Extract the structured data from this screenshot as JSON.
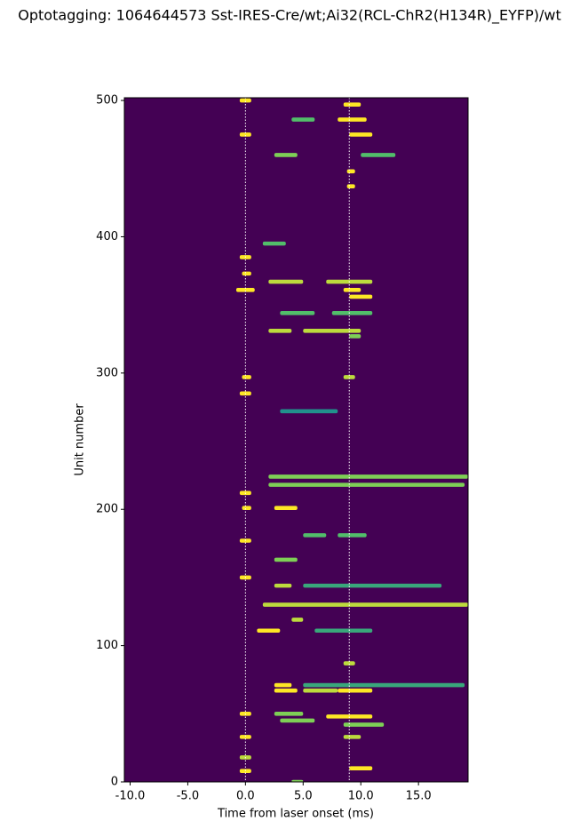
{
  "chart_data": {
    "type": "heatmap",
    "title": "Optotagging: 1064644573 Sst-IRES-Cre/wt;Ai32(RCL-ChR2(H134R)_EYFP)/wt",
    "x_label": "Time from laser onset (ms)",
    "y_label": "Unit number",
    "xlim": [
      -10.5,
      19.3
    ],
    "ylim": [
      0,
      502
    ],
    "xticks": [
      {
        "value": -10,
        "label": "-10.0"
      },
      {
        "value": -5,
        "label": "-5.0"
      },
      {
        "value": 0,
        "label": "0.0"
      },
      {
        "value": 5,
        "label": "5.0"
      },
      {
        "value": 10,
        "label": "10.0"
      },
      {
        "value": 15,
        "label": "15.0"
      }
    ],
    "yticks": [
      0,
      100,
      200,
      300,
      400,
      500
    ],
    "background_color": "#440154",
    "colormap": [
      "#440154",
      "#3b528b",
      "#21918c",
      "#5ec962",
      "#fde725"
    ],
    "vlines": [
      0,
      9
    ],
    "vline_color": "#ffffff",
    "units": [
      500,
      497,
      486,
      486,
      475,
      475,
      460,
      460,
      448,
      437,
      395,
      385,
      373,
      367,
      367,
      361,
      361,
      356,
      344,
      344,
      331,
      331,
      327,
      297,
      297,
      285,
      272,
      224,
      218,
      212,
      201,
      201,
      181,
      181,
      177,
      163,
      150,
      144,
      144,
      130,
      119,
      111,
      111,
      87,
      71,
      71,
      67,
      67,
      67,
      50,
      50,
      48,
      45,
      42,
      33,
      33,
      18,
      10,
      8,
      0
    ],
    "starts": [
      -0.5,
      8.5,
      4,
      8,
      -0.5,
      9,
      2.5,
      10,
      8.8,
      8.8,
      1.5,
      -0.5,
      -0.3,
      2,
      7,
      -0.8,
      8.5,
      9,
      3,
      7.5,
      2,
      5,
      9,
      -0.3,
      8.5,
      -0.5,
      3,
      2,
      2,
      -0.5,
      2.5,
      -0.3,
      5,
      8,
      -0.5,
      2.5,
      -0.5,
      2.5,
      5,
      1.5,
      4,
      1,
      6,
      8.5,
      2.5,
      5,
      2.5,
      5,
      8,
      -0.5,
      2.5,
      7,
      3,
      8.5,
      -0.5,
      8.5,
      -0.5,
      9,
      -0.5,
      4
    ],
    "ends": [
      0.5,
      10,
      6,
      10.5,
      0.5,
      11,
      4.5,
      13,
      9.5,
      9.5,
      3.5,
      0.5,
      0.5,
      5,
      11,
      0.8,
      10,
      11,
      6,
      11,
      4,
      10,
      10,
      0.5,
      9.5,
      0.5,
      8,
      19.3,
      19,
      0.5,
      4.5,
      0.5,
      7,
      10.5,
      0.5,
      4.5,
      0.5,
      4,
      17,
      19.3,
      5,
      3,
      11,
      9.5,
      4,
      19,
      4.5,
      8,
      11,
      0.5,
      5,
      11,
      6,
      12,
      0.5,
      10,
      0.5,
      11,
      0.5,
      5
    ],
    "intensities": [
      1,
      1,
      0.7,
      1,
      1,
      1,
      0.8,
      0.7,
      1,
      1,
      0.7,
      1,
      1,
      0.9,
      0.9,
      1,
      1,
      1,
      0.7,
      0.7,
      0.9,
      0.9,
      0.8,
      1,
      0.9,
      1,
      0.5,
      0.8,
      0.8,
      1,
      1,
      1,
      0.7,
      0.7,
      1,
      0.8,
      1,
      0.9,
      0.6,
      0.9,
      0.9,
      1,
      0.6,
      0.9,
      1,
      0.6,
      1,
      0.9,
      1,
      1,
      0.8,
      1,
      0.8,
      0.8,
      1,
      0.9,
      0.9,
      1,
      1,
      0.8
    ]
  }
}
